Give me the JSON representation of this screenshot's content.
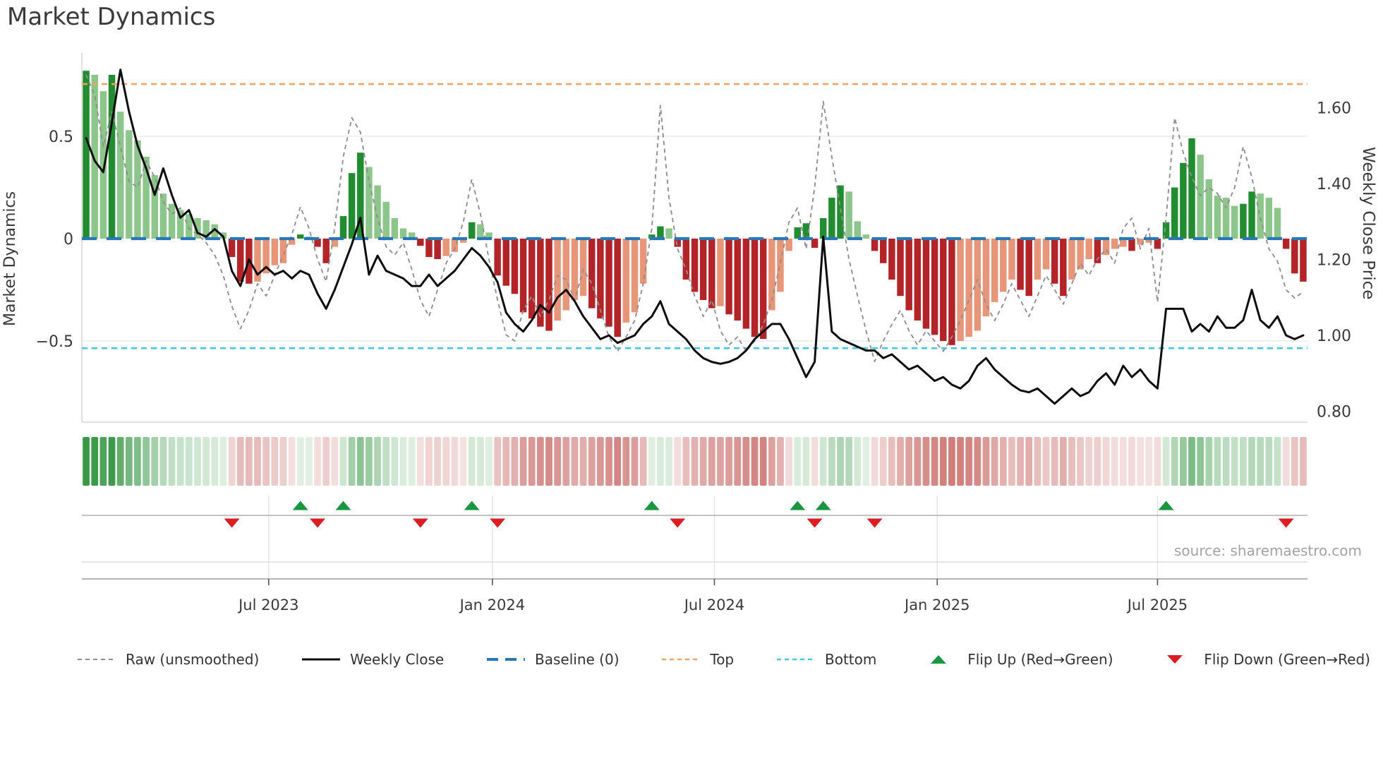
{
  "title": "Market Dynamics",
  "source": "source: sharemaestro.com",
  "axes": {
    "left_label": "Market Dynamics",
    "right_label": "Weekly Close Price",
    "left_ticks": [
      {
        "label": "0.5",
        "value": 0.5
      },
      {
        "label": "0",
        "value": 0
      },
      {
        "label": "−0.5",
        "value": -0.5
      }
    ],
    "right_ticks": [
      {
        "label": "1.60",
        "value": 1.6
      },
      {
        "label": "1.40",
        "value": 1.4
      },
      {
        "label": "1.20",
        "value": 1.2
      },
      {
        "label": "1.00",
        "value": 1.0
      },
      {
        "label": "0.80",
        "value": 0.8
      }
    ],
    "x_ticks": [
      {
        "label": "Jul 2023",
        "week": 21.3
      },
      {
        "label": "Jan 2024",
        "week": 47.4
      },
      {
        "label": "Jul 2024",
        "week": 73.3
      },
      {
        "label": "Jan 2025",
        "week": 99.3
      },
      {
        "label": "Jul 2025",
        "week": 125.0
      }
    ]
  },
  "colors": {
    "bar_up_strong": "#228c30",
    "bar_up_weak": "#8cc68a",
    "bar_down_strong": "#b22428",
    "bar_down_weak": "#e8967a",
    "baseline": "#2878b5",
    "top_line": "#f4a460",
    "bottom_line": "#45c5e8",
    "raw_line": "#8f8f8f",
    "price_line": "#0d0d0d",
    "flip_up": "#1a9641",
    "flip_down": "#da1e24",
    "grid": "#e7e7e7",
    "spine": "#cfcfcf",
    "panel_line": "#b0b0b0",
    "axis_line": "#9c9c9c",
    "heat_up_rgb": [
      34,
      140,
      48
    ],
    "heat_down_rgb": [
      178,
      45,
      40
    ]
  },
  "chart_data": {
    "type": "bar",
    "weeks": 143,
    "osc_ylim": [
      -0.9,
      0.91
    ],
    "price_ylim": [
      0.77,
      1.745
    ],
    "grid_y_osc": [
      0.5,
      -0.5
    ],
    "reference_lines": {
      "baseline": 0,
      "top": 0.755,
      "bottom": -0.535
    },
    "series": [
      {
        "name": "Momentum bars",
        "type": "bar",
        "axis": "osc",
        "values": [
          0.82,
          0.8,
          0.72,
          0.8,
          0.62,
          0.53,
          0.48,
          0.4,
          0.31,
          0.22,
          0.17,
          0.14,
          0.12,
          0.1,
          0.09,
          0.07,
          0.03,
          -0.09,
          -0.21,
          -0.22,
          -0.21,
          -0.17,
          -0.13,
          -0.12,
          -0.03,
          0.02,
          0.01,
          -0.04,
          -0.12,
          -0.04,
          0.11,
          0.32,
          0.42,
          0.35,
          0.26,
          0.18,
          0.1,
          0.05,
          0.03,
          -0.035,
          -0.09,
          -0.1,
          -0.085,
          -0.065,
          -0.02,
          0.08,
          0.07,
          0.03,
          -0.18,
          -0.23,
          -0.27,
          -0.36,
          -0.39,
          -0.43,
          -0.45,
          -0.4,
          -0.35,
          -0.3,
          -0.28,
          -0.34,
          -0.39,
          -0.43,
          -0.48,
          -0.41,
          -0.36,
          -0.22,
          0.02,
          0.06,
          0.05,
          -0.04,
          -0.2,
          -0.26,
          -0.3,
          -0.34,
          -0.33,
          -0.37,
          -0.4,
          -0.44,
          -0.48,
          -0.49,
          -0.35,
          -0.26,
          -0.06,
          0.055,
          0.075,
          -0.045,
          0.1,
          0.2,
          0.26,
          0.23,
          0.085,
          0.02,
          -0.06,
          -0.12,
          -0.2,
          -0.28,
          -0.35,
          -0.4,
          -0.44,
          -0.47,
          -0.5,
          -0.52,
          -0.5,
          -0.48,
          -0.45,
          -0.38,
          -0.31,
          -0.26,
          -0.2,
          -0.25,
          -0.28,
          -0.2,
          -0.15,
          -0.22,
          -0.28,
          -0.2,
          -0.15,
          -0.1,
          -0.12,
          -0.08,
          -0.05,
          -0.04,
          -0.06,
          -0.03,
          -0.02,
          -0.05,
          0.08,
          0.25,
          0.37,
          0.49,
          0.41,
          0.29,
          0.21,
          0.2,
          0.16,
          0.17,
          0.23,
          0.22,
          0.2,
          0.15,
          -0.05,
          -0.17,
          -0.21
        ]
      },
      {
        "name": "Raw (unsmoothed)",
        "type": "line",
        "style": "dashed",
        "axis": "osc",
        "values": [
          0.8,
          0.7,
          0.45,
          0.62,
          0.45,
          0.28,
          0.25,
          0.38,
          0.3,
          0.18,
          0.12,
          0.15,
          0.05,
          0.02,
          -0.02,
          -0.08,
          -0.18,
          -0.33,
          -0.44,
          -0.35,
          -0.22,
          -0.28,
          -0.18,
          -0.08,
          0.02,
          0.155,
          0.05,
          -0.1,
          -0.21,
          0.05,
          0.4,
          0.59,
          0.52,
          0.28,
          0.1,
          -0.04,
          -0.08,
          -0.02,
          -0.15,
          -0.3,
          -0.38,
          -0.25,
          -0.12,
          -0.05,
          0.08,
          0.29,
          0.12,
          -0.1,
          -0.3,
          -0.47,
          -0.5,
          -0.35,
          -0.28,
          -0.38,
          -0.3,
          -0.18,
          -0.2,
          -0.3,
          -0.15,
          -0.22,
          -0.35,
          -0.48,
          -0.55,
          -0.48,
          -0.4,
          -0.22,
          0.05,
          0.65,
          0.2,
          -0.05,
          -0.15,
          -0.28,
          -0.38,
          -0.3,
          -0.45,
          -0.52,
          -0.48,
          -0.55,
          -0.5,
          -0.42,
          -0.3,
          -0.12,
          0.08,
          0.15,
          -0.05,
          0.25,
          0.67,
          0.4,
          0.15,
          -0.1,
          -0.28,
          -0.45,
          -0.6,
          -0.5,
          -0.42,
          -0.35,
          -0.45,
          -0.52,
          -0.45,
          -0.5,
          -0.55,
          -0.48,
          -0.4,
          -0.3,
          -0.2,
          -0.32,
          -0.4,
          -0.32,
          -0.22,
          -0.3,
          -0.38,
          -0.28,
          -0.18,
          -0.25,
          -0.32,
          -0.22,
          -0.12,
          -0.18,
          -0.1,
          -0.05,
          -0.12,
          0.05,
          0.1,
          -0.05,
          0.05,
          -0.31,
          0.1,
          0.59,
          0.42,
          0.3,
          0.21,
          0.25,
          0.22,
          0.15,
          0.25,
          0.45,
          0.3,
          0.1,
          -0.05,
          -0.11,
          -0.25,
          -0.29,
          -0.26
        ]
      },
      {
        "name": "Weekly Close",
        "type": "line",
        "style": "solid",
        "axis": "price",
        "values": [
          1.52,
          1.46,
          1.43,
          1.56,
          1.7,
          1.59,
          1.5,
          1.44,
          1.37,
          1.44,
          1.37,
          1.31,
          1.33,
          1.27,
          1.26,
          1.28,
          1.26,
          1.17,
          1.13,
          1.2,
          1.16,
          1.18,
          1.16,
          1.17,
          1.15,
          1.17,
          1.16,
          1.11,
          1.07,
          1.12,
          1.18,
          1.24,
          1.31,
          1.16,
          1.21,
          1.17,
          1.16,
          1.15,
          1.13,
          1.13,
          1.16,
          1.13,
          1.15,
          1.17,
          1.2,
          1.23,
          1.21,
          1.18,
          1.14,
          1.06,
          1.03,
          1.01,
          1.04,
          1.08,
          1.06,
          1.1,
          1.12,
          1.09,
          1.05,
          1.02,
          0.99,
          1.0,
          0.98,
          0.99,
          1.0,
          1.03,
          1.05,
          1.09,
          1.03,
          1.01,
          0.99,
          0.96,
          0.94,
          0.93,
          0.925,
          0.93,
          0.94,
          0.96,
          0.99,
          1.01,
          1.03,
          1.03,
          0.99,
          0.94,
          0.89,
          0.93,
          1.26,
          1.01,
          0.99,
          0.98,
          0.97,
          0.96,
          0.96,
          0.94,
          0.95,
          0.93,
          0.91,
          0.92,
          0.9,
          0.88,
          0.89,
          0.87,
          0.86,
          0.88,
          0.92,
          0.94,
          0.91,
          0.89,
          0.87,
          0.855,
          0.85,
          0.86,
          0.84,
          0.82,
          0.84,
          0.86,
          0.84,
          0.85,
          0.88,
          0.9,
          0.87,
          0.92,
          0.89,
          0.91,
          0.88,
          0.86,
          1.07,
          1.07,
          1.07,
          1.01,
          1.03,
          1.01,
          1.05,
          1.02,
          1.02,
          1.04,
          1.12,
          1.04,
          1.02,
          1.05,
          1.0,
          0.99,
          1.0
        ]
      }
    ],
    "flip_up_weeks": [
      25,
      30,
      45,
      66,
      83,
      86,
      126
    ],
    "flip_down_weeks": [
      17,
      27,
      39,
      48,
      69,
      85,
      92,
      140
    ],
    "heatmap": {
      "note": "weekly cells, green for positive momentum, red for negative, intensity proportional to magnitude"
    }
  },
  "legend": {
    "items": [
      {
        "label": "Raw (unsmoothed)",
        "swatch": "raw"
      },
      {
        "label": "Weekly Close",
        "swatch": "close"
      },
      {
        "label": "Baseline (0)",
        "swatch": "baseline"
      },
      {
        "label": "Top",
        "swatch": "top"
      },
      {
        "label": "Bottom",
        "swatch": "bottom"
      },
      {
        "label": "Flip Up (Red→Green)",
        "swatch": "flip_up"
      },
      {
        "label": "Flip Down (Green→Red)",
        "swatch": "flip_down"
      }
    ]
  }
}
